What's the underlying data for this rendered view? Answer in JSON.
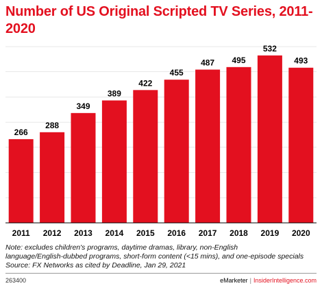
{
  "colors": {
    "bar": "#e3101f",
    "title": "#e3101f",
    "axis": "#000000",
    "grid": "#d0d0d0"
  },
  "chart_data": {
    "type": "bar",
    "title": "Number of US Original Scripted TV Series, 2011-2020",
    "categories": [
      "2011",
      "2012",
      "2013",
      "2014",
      "2015",
      "2016",
      "2017",
      "2018",
      "2019",
      "2020"
    ],
    "values": [
      266,
      288,
      349,
      389,
      422,
      455,
      487,
      495,
      532,
      493
    ],
    "data_labels": [
      "266",
      "288",
      "349",
      "389",
      "422",
      "455",
      "487",
      "495",
      "532",
      "493"
    ],
    "ylim": [
      0,
      560
    ],
    "xlabel": "",
    "ylabel": "",
    "grid": true,
    "legend": "none"
  },
  "notes": {
    "line1": "Note: excludes children's programs, daytime dramas, library, non-English",
    "line2": "language/English-dubbed programs, short-form content (<15 mins), and one-episode specials",
    "line3": "Source: FX Networks as cited by Deadline, Jan 29, 2021"
  },
  "footer": {
    "chart_id": "263400",
    "brand1": "eMarketer",
    "separator": "|",
    "brand2": "InsiderIntelligence.com"
  }
}
